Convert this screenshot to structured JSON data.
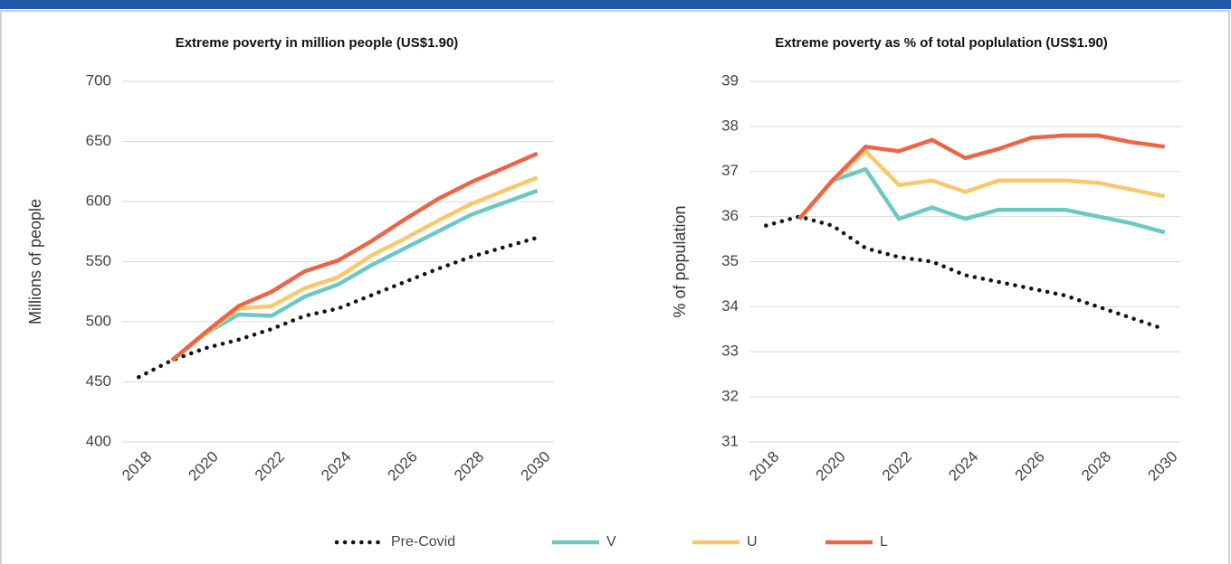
{
  "chart_data": [
    {
      "type": "line",
      "title": "Extreme poverty in million people (US$1.90)",
      "ylabel": "Millions of people",
      "x": [
        2018,
        2019,
        2020,
        2021,
        2022,
        2023,
        2024,
        2025,
        2026,
        2027,
        2028,
        2029,
        2030
      ],
      "xlim": [
        2017.5,
        2030.5
      ],
      "xticks": [
        2018,
        2020,
        2022,
        2024,
        2026,
        2028,
        2030
      ],
      "ylim": [
        400,
        700
      ],
      "yticks": [
        400,
        450,
        500,
        550,
        600,
        650,
        700
      ],
      "grid": true,
      "series": [
        {
          "name": "Pre-Covid",
          "color": "#111111",
          "style": "dotted",
          "values": [
            454,
            468,
            478,
            485,
            494,
            505,
            511,
            522,
            533,
            544,
            554,
            562,
            570
          ]
        },
        {
          "name": "V",
          "color": "#6cc9c2",
          "style": "solid",
          "values": [
            null,
            468,
            490,
            506,
            505,
            521,
            531,
            547,
            561,
            575,
            589,
            599,
            609
          ]
        },
        {
          "name": "U",
          "color": "#f9c86a",
          "style": "solid",
          "values": [
            null,
            468,
            490,
            511,
            513,
            528,
            537,
            555,
            569,
            584,
            598,
            609,
            620
          ]
        },
        {
          "name": "L",
          "color": "#ee6446",
          "style": "solid",
          "values": [
            null,
            468,
            491,
            513,
            525,
            542,
            551,
            567,
            585,
            602,
            616,
            628,
            640
          ]
        }
      ]
    },
    {
      "type": "line",
      "title": "Extreme poverty as % of total poplulation (US$1.90)",
      "ylabel": "% of population",
      "x": [
        2018,
        2019,
        2020,
        2021,
        2022,
        2023,
        2024,
        2025,
        2026,
        2027,
        2028,
        2029,
        2030
      ],
      "xlim": [
        2017.5,
        2030.5
      ],
      "xticks": [
        2018,
        2020,
        2022,
        2024,
        2026,
        2028,
        2030
      ],
      "ylim": [
        31,
        39
      ],
      "yticks": [
        31,
        32,
        33,
        34,
        35,
        36,
        37,
        38,
        39
      ],
      "grid": true,
      "series": [
        {
          "name": "Pre-Covid",
          "color": "#111111",
          "style": "dotted",
          "values": [
            35.8,
            36.0,
            35.8,
            35.3,
            35.1,
            35.0,
            34.7,
            34.55,
            34.4,
            34.25,
            34.0,
            33.75,
            33.5
          ]
        },
        {
          "name": "V",
          "color": "#6cc9c2",
          "style": "solid",
          "values": [
            null,
            35.95,
            36.8,
            37.05,
            35.95,
            36.2,
            35.95,
            36.15,
            36.15,
            36.15,
            36.0,
            35.85,
            35.65
          ]
        },
        {
          "name": "U",
          "color": "#f9c86a",
          "style": "solid",
          "values": [
            null,
            35.95,
            36.8,
            37.45,
            36.7,
            36.8,
            36.55,
            36.8,
            36.8,
            36.8,
            36.75,
            36.6,
            36.45
          ]
        },
        {
          "name": "L",
          "color": "#ee6446",
          "style": "solid",
          "values": [
            null,
            35.95,
            36.8,
            37.55,
            37.45,
            37.7,
            37.3,
            37.5,
            37.75,
            37.8,
            37.8,
            37.65,
            37.55
          ]
        }
      ]
    }
  ]
}
